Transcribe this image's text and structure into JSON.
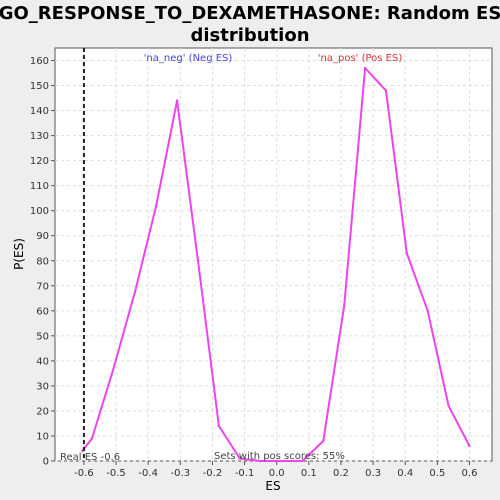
{
  "chart_data": {
    "type": "line",
    "title_line1": "GO_RESPONSE_TO_DEXAMETHASONE: Random ES",
    "title_line2": "distribution",
    "xlabel": "ES",
    "ylabel": "P(ES)",
    "xlim": [
      -0.69,
      0.67
    ],
    "ylim": [
      0,
      165
    ],
    "xticks": [
      -0.6,
      -0.5,
      -0.4,
      -0.3,
      -0.2,
      -0.1,
      0.0,
      0.1,
      0.2,
      0.3,
      0.4,
      0.5,
      0.6
    ],
    "xtick_labels": [
      "-0.6",
      "-0.5",
      "-0.4",
      "-0.3",
      "-0.2",
      "-0.1",
      "0.0",
      "0.1",
      "0.2",
      "0.3",
      "0.4",
      "0.5",
      "0.6"
    ],
    "yticks": [
      0,
      10,
      20,
      30,
      40,
      50,
      60,
      70,
      80,
      90,
      100,
      110,
      120,
      130,
      140,
      150,
      160
    ],
    "grid": true,
    "series": [
      {
        "color": "#ee44ee",
        "x": [
          -0.605,
          -0.575,
          -0.51,
          -0.44,
          -0.375,
          -0.31,
          -0.245,
          -0.18,
          -0.115,
          -0.05,
          0.015,
          0.08,
          0.145,
          0.21,
          0.275,
          0.34,
          0.405,
          0.47,
          0.535,
          0.6
        ],
        "y": [
          4,
          9,
          36,
          68,
          102,
          144,
          80,
          14,
          1,
          0,
          0,
          0,
          8,
          62,
          157,
          148,
          83,
          60,
          22,
          6
        ]
      }
    ],
    "vline": {
      "x": -0.6,
      "color": "#222222",
      "style": "dashed"
    },
    "annotations": {
      "neg_label": "'na_neg' (Neg ES)",
      "pos_label": "'na_pos' (Pos ES)",
      "real_es": "Real ES -0.6",
      "sets_pos": "Sets with pos scores: 55%"
    },
    "colors": {
      "neg": "#4444dd",
      "pos": "#dd3333",
      "line": "#ee44ee"
    }
  }
}
